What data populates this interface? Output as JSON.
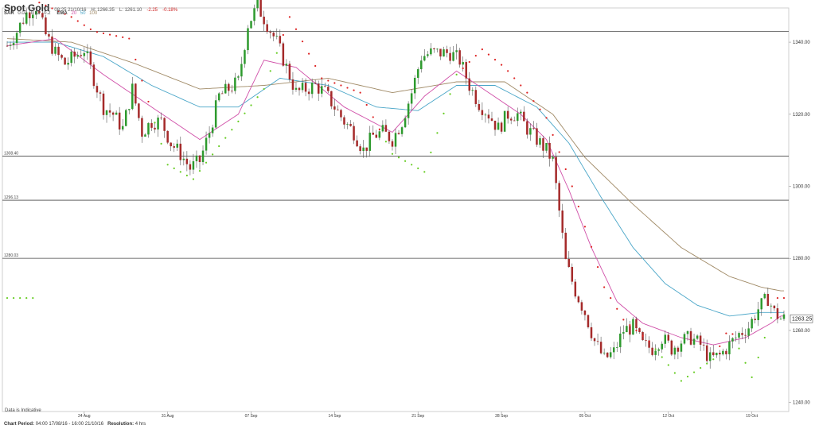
{
  "header": {
    "title": "Spot Gold",
    "timestamp": "08:25 21/10/16",
    "high": "H: 1266.35",
    "low": "L: 1261.10",
    "change": "-2.25",
    "change_pct": "-0.18%"
  },
  "indicators": {
    "sar_label": "SAR",
    "sar_params": [
      "0.02",
      "0.02",
      "0.2"
    ],
    "ema_label": "EMA",
    "ema_periods": [
      "20",
      "50",
      "100"
    ]
  },
  "footer": {
    "note": "Data is Indicative",
    "period_label": "Chart Period:",
    "period_value": "04:00 17/08/16 - 16:00 21/10/16",
    "resolution_label": "Resolution:",
    "resolution_value": "4 hrs"
  },
  "colors": {
    "up": "#2e9a2e",
    "down": "#a52a2a",
    "sar_above": "#dd2222",
    "sar_below": "#66cc22",
    "ema20": "#d04fa8",
    "ema50": "#4aa6c8",
    "ema100": "#a08a66",
    "hline": "#444444"
  },
  "chart_data": {
    "type": "candlestick",
    "title": "Spot Gold",
    "resolution": "4 hrs",
    "ylim": [
      1237.5,
      1349.5
    ],
    "y_ticks": [
      "1340.00",
      "1320.00",
      "1300.00",
      "1280.00",
      "1260.00",
      "1240.00"
    ],
    "x_ticks": [
      "24 Aug",
      "31 Aug",
      "07 Sep",
      "14 Sep",
      "21 Sep",
      "28 Sep",
      "05 Oct",
      "12 Oct",
      "19 Oct"
    ],
    "current_price": "1263.25",
    "horizontal_levels": [
      {
        "value": 1343.0,
        "label": ""
      },
      {
        "value": 1308.4,
        "label": "1308.40"
      },
      {
        "value": 1296.13,
        "label": "1296.13"
      },
      {
        "value": 1280.03,
        "label": "1280.03"
      }
    ],
    "close_path": [
      [
        0,
        1339
      ],
      [
        3,
        1343
      ],
      [
        6,
        1348
      ],
      [
        9,
        1350
      ],
      [
        12,
        1342
      ],
      [
        15,
        1337
      ],
      [
        18,
        1334
      ],
      [
        21,
        1336
      ],
      [
        24,
        1338
      ],
      [
        27,
        1330
      ],
      [
        30,
        1322
      ],
      [
        33,
        1320
      ],
      [
        36,
        1316
      ],
      [
        39,
        1327
      ],
      [
        42,
        1315
      ],
      [
        45,
        1318
      ],
      [
        48,
        1318
      ],
      [
        51,
        1312
      ],
      [
        54,
        1309
      ],
      [
        57,
        1305
      ],
      [
        60,
        1307
      ],
      [
        63,
        1315
      ],
      [
        66,
        1325
      ],
      [
        69,
        1327
      ],
      [
        72,
        1329
      ],
      [
        75,
        1345
      ],
      [
        78,
        1350
      ],
      [
        81,
        1345
      ],
      [
        84,
        1340
      ],
      [
        87,
        1333
      ],
      [
        90,
        1326
      ],
      [
        93,
        1327
      ],
      [
        96,
        1328
      ],
      [
        99,
        1326
      ],
      [
        102,
        1322
      ],
      [
        105,
        1318
      ],
      [
        108,
        1315
      ],
      [
        111,
        1310
      ],
      [
        114,
        1314
      ],
      [
        117,
        1315
      ],
      [
        120,
        1313
      ],
      [
        123,
        1318
      ],
      [
        126,
        1326
      ],
      [
        129,
        1336
      ],
      [
        132,
        1337
      ],
      [
        135,
        1337
      ],
      [
        138,
        1337
      ],
      [
        141,
        1335
      ],
      [
        144,
        1328
      ],
      [
        147,
        1323
      ],
      [
        150,
        1320
      ],
      [
        153,
        1316
      ],
      [
        156,
        1320
      ],
      [
        159,
        1320
      ],
      [
        162,
        1316
      ],
      [
        165,
        1313
      ],
      [
        168,
        1310
      ],
      [
        170,
        1307
      ],
      [
        172,
        1293
      ],
      [
        174,
        1279
      ],
      [
        177,
        1271
      ],
      [
        180,
        1265
      ],
      [
        183,
        1257
      ],
      [
        186,
        1252
      ],
      [
        189,
        1254
      ],
      [
        192,
        1260
      ],
      [
        195,
        1261
      ],
      [
        198,
        1256
      ],
      [
        201,
        1255
      ],
      [
        204,
        1258
      ],
      [
        207,
        1255
      ],
      [
        210,
        1257
      ],
      [
        213,
        1258
      ],
      [
        216,
        1256
      ],
      [
        219,
        1252
      ],
      [
        222,
        1253
      ],
      [
        225,
        1256
      ],
      [
        228,
        1259
      ],
      [
        231,
        1261
      ],
      [
        234,
        1266
      ],
      [
        237,
        1269
      ],
      [
        239,
        1265
      ],
      [
        241,
        1263.25
      ]
    ],
    "ema20": [
      [
        0,
        1339
      ],
      [
        15,
        1341
      ],
      [
        30,
        1331
      ],
      [
        45,
        1322
      ],
      [
        60,
        1313
      ],
      [
        72,
        1320
      ],
      [
        80,
        1335
      ],
      [
        90,
        1333
      ],
      [
        105,
        1322
      ],
      [
        120,
        1315
      ],
      [
        130,
        1325
      ],
      [
        140,
        1332
      ],
      [
        150,
        1326
      ],
      [
        160,
        1320
      ],
      [
        168,
        1313
      ],
      [
        175,
        1299
      ],
      [
        182,
        1283
      ],
      [
        190,
        1268
      ],
      [
        198,
        1262
      ],
      [
        210,
        1258
      ],
      [
        220,
        1256
      ],
      [
        230,
        1258
      ],
      [
        238,
        1262
      ],
      [
        241,
        1264
      ]
    ],
    "ema50": [
      [
        0,
        1340
      ],
      [
        15,
        1340
      ],
      [
        30,
        1336
      ],
      [
        45,
        1328
      ],
      [
        60,
        1322
      ],
      [
        72,
        1322
      ],
      [
        85,
        1330
      ],
      [
        100,
        1328
      ],
      [
        115,
        1322
      ],
      [
        128,
        1321
      ],
      [
        140,
        1328
      ],
      [
        152,
        1328
      ],
      [
        165,
        1322
      ],
      [
        175,
        1312
      ],
      [
        185,
        1297
      ],
      [
        195,
        1283
      ],
      [
        205,
        1273
      ],
      [
        215,
        1267
      ],
      [
        225,
        1264
      ],
      [
        235,
        1265
      ],
      [
        241,
        1265
      ]
    ],
    "ema100": [
      [
        0,
        1341
      ],
      [
        20,
        1340
      ],
      [
        40,
        1334
      ],
      [
        60,
        1327
      ],
      [
        80,
        1328
      ],
      [
        100,
        1330
      ],
      [
        120,
        1326
      ],
      [
        140,
        1329
      ],
      [
        155,
        1329
      ],
      [
        170,
        1320
      ],
      [
        180,
        1308
      ],
      [
        195,
        1295
      ],
      [
        210,
        1283
      ],
      [
        225,
        1275
      ],
      [
        235,
        1272
      ],
      [
        241,
        1271
      ]
    ],
    "sar_points": [
      [
        10,
        1351
      ],
      [
        20,
        1347
      ],
      [
        27,
        1343
      ],
      [
        38,
        1341
      ],
      [
        50,
        1306
      ],
      [
        58,
        1302
      ],
      [
        65,
        1310
      ],
      [
        72,
        1318
      ],
      [
        80,
        1327
      ],
      [
        88,
        1347
      ],
      [
        98,
        1330
      ],
      [
        110,
        1326
      ],
      [
        120,
        1309
      ],
      [
        130,
        1304
      ],
      [
        140,
        1331
      ],
      [
        148,
        1338
      ],
      [
        155,
        1333
      ],
      [
        162,
        1326
      ],
      [
        168,
        1319
      ],
      [
        176,
        1300
      ],
      [
        186,
        1272
      ],
      [
        192,
        1263
      ],
      [
        200,
        1257
      ],
      [
        210,
        1246
      ],
      [
        220,
        1252
      ],
      [
        225,
        1261
      ],
      [
        232,
        1247
      ],
      [
        240,
        1269
      ]
    ]
  }
}
